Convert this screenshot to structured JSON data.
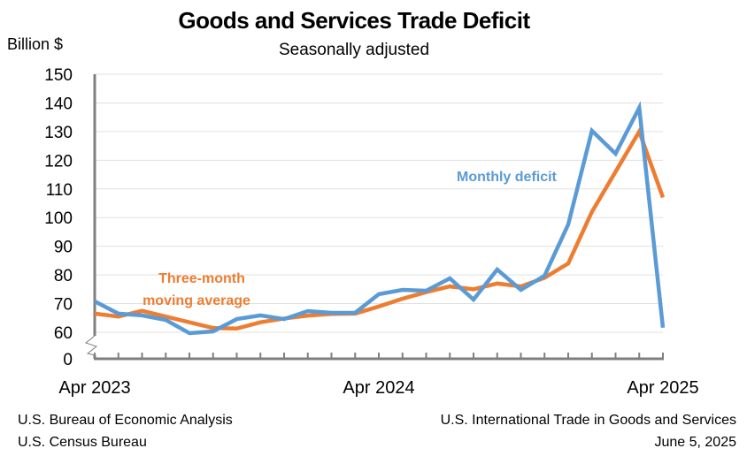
{
  "chart_data": {
    "type": "line",
    "title": "Goods and Services Trade Deficit",
    "subtitle": "Seasonally adjusted",
    "ylabel": "Billion $",
    "xlabel": "",
    "y_ticks": [
      "150",
      "140",
      "130",
      "120",
      "110",
      "100",
      "90",
      "80",
      "70",
      "60",
      "0"
    ],
    "y_tick_values": [
      150,
      140,
      130,
      120,
      110,
      100,
      90,
      80,
      70,
      60
    ],
    "ylim": [
      60,
      150
    ],
    "axis_break": true,
    "x_tick_labels": [
      {
        "label": "Apr 2023",
        "index": 0
      },
      {
        "label": "Apr 2024",
        "index": 12
      },
      {
        "label": "Apr 2025",
        "index": 24
      }
    ],
    "x": [
      "Apr 2023",
      "May 2023",
      "Jun 2023",
      "Jul 2023",
      "Aug 2023",
      "Sep 2023",
      "Oct 2023",
      "Nov 2023",
      "Dec 2023",
      "Jan 2024",
      "Feb 2024",
      "Mar 2024",
      "Apr 2024",
      "May 2024",
      "Jun 2024",
      "Jul 2024",
      "Aug 2024",
      "Sep 2024",
      "Oct 2024",
      "Nov 2024",
      "Dec 2024",
      "Jan 2025",
      "Feb 2025",
      "Mar 2025",
      "Apr 2025"
    ],
    "grid": true,
    "series": [
      {
        "name": "Monthly deficit",
        "color": "#5b9bd5",
        "values": [
          70.8,
          66.5,
          65.9,
          64.3,
          59.7,
          60.3,
          64.6,
          65.9,
          64.6,
          67.4,
          66.8,
          66.8,
          73.3,
          74.8,
          74.5,
          78.8,
          71.4,
          81.9,
          74.8,
          79.7,
          97.6,
          130.3,
          122.3,
          138.3,
          61.6
        ]
      },
      {
        "name": "Three-month moving average",
        "color": "#ed7d31",
        "values": [
          66.5,
          65.5,
          67.5,
          65.5,
          63.5,
          61.5,
          61.3,
          63.5,
          64.8,
          65.8,
          66.4,
          66.5,
          69.0,
          71.7,
          74.0,
          76.0,
          75.0,
          77.0,
          76.0,
          79.0,
          84.0,
          102.0,
          116.0,
          130.0,
          107.0
        ]
      }
    ],
    "annotations": [
      {
        "text": "Monthly deficit",
        "series": "Monthly deficit"
      },
      {
        "text_lines": [
          "Three-month",
          "moving average"
        ],
        "series": "Three-month moving average"
      }
    ]
  },
  "footer": {
    "left_line1": "U.S. Bureau of Economic Analysis",
    "left_line2": "U.S. Census Bureau",
    "right_line1": "U.S. International Trade in Goods and Services",
    "right_line2": "June 5, 2025"
  }
}
